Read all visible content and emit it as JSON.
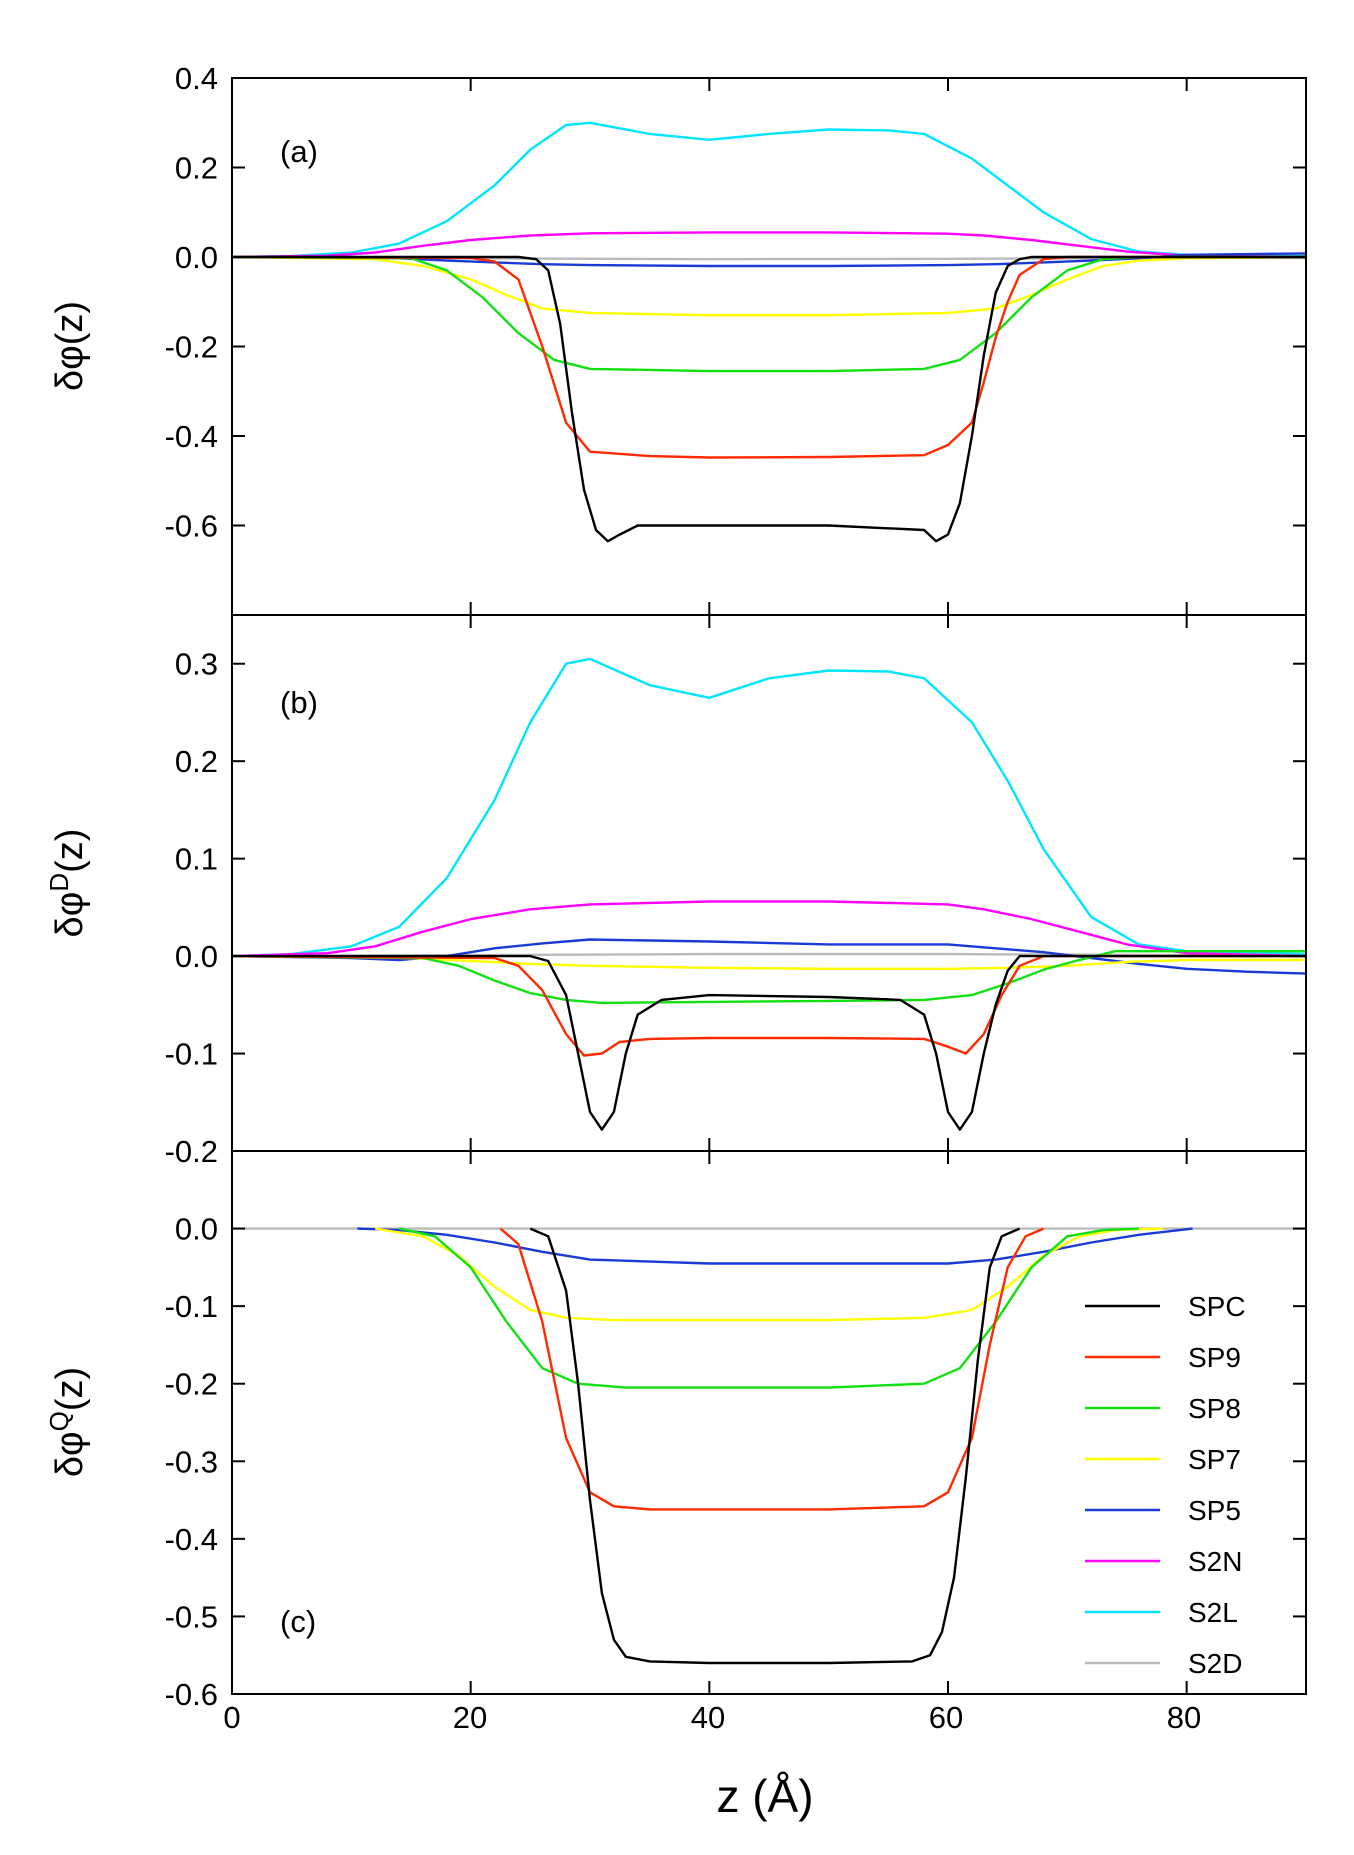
{
  "figure": {
    "xlabel": "z (Å)",
    "xticks": [
      "0",
      "20",
      "40",
      "60",
      "80"
    ]
  },
  "legend": [
    {
      "name": "SPC",
      "color": "#000000"
    },
    {
      "name": "SP9",
      "color": "#ff2a00"
    },
    {
      "name": "SP8",
      "color": "#12e012"
    },
    {
      "name": "SP7",
      "color": "#ffff00"
    },
    {
      "name": "SP5",
      "color": "#1a3ad6"
    },
    {
      "name": "S2N",
      "color": "#ff00ff"
    },
    {
      "name": "S2L",
      "color": "#00e5ff"
    },
    {
      "name": "S2D",
      "color": "#bbbbbb"
    }
  ],
  "chart_data": [
    {
      "type": "line",
      "panel_label": "(a)",
      "ylabel_main": "δφ(z)",
      "ylabel_sup": "",
      "xlim": [
        0,
        90
      ],
      "ylim": [
        -0.8,
        0.4
      ],
      "yticks": [
        0.4,
        0.2,
        0.0,
        -0.2,
        -0.4,
        -0.6
      ],
      "ytick_labels": [
        "0.4",
        "0.2",
        "0.0",
        "-0.2",
        "-0.4",
        "-0.6"
      ],
      "series": [
        {
          "name": "S2D",
          "x": [
            0,
            20,
            40,
            60,
            80,
            90
          ],
          "y": [
            0,
            -0.003,
            -0.005,
            -0.004,
            -0.002,
            -0.002
          ]
        },
        {
          "name": "S2L",
          "x": [
            0,
            5,
            10,
            14,
            18,
            22,
            25,
            28,
            30,
            35,
            40,
            45,
            50,
            55,
            58,
            62,
            65,
            68,
            72,
            76,
            80,
            90
          ],
          "y": [
            0,
            0.002,
            0.01,
            0.03,
            0.08,
            0.16,
            0.24,
            0.295,
            0.3,
            0.275,
            0.262,
            0.275,
            0.285,
            0.283,
            0.275,
            0.22,
            0.16,
            0.1,
            0.04,
            0.012,
            0.005,
            0.002
          ]
        },
        {
          "name": "S2N",
          "x": [
            0,
            8,
            12,
            16,
            20,
            25,
            30,
            40,
            50,
            60,
            63,
            67,
            71,
            75,
            80,
            90
          ],
          "y": [
            0,
            0.003,
            0.01,
            0.025,
            0.038,
            0.048,
            0.053,
            0.055,
            0.055,
            0.052,
            0.048,
            0.038,
            0.025,
            0.012,
            0.003,
            0
          ]
        },
        {
          "name": "SP5",
          "x": [
            0,
            10,
            14,
            18,
            22,
            26,
            30,
            40,
            50,
            60,
            64,
            68,
            72,
            76,
            80,
            90
          ],
          "y": [
            0,
            0,
            -0.003,
            -0.008,
            -0.012,
            -0.016,
            -0.018,
            -0.02,
            -0.02,
            -0.018,
            -0.016,
            -0.012,
            -0.008,
            -0.003,
            0.005,
            0.008
          ]
        },
        {
          "name": "SP7",
          "x": [
            0,
            12,
            16,
            20,
            23,
            26,
            30,
            40,
            50,
            60,
            64,
            67,
            70,
            73,
            76,
            80,
            90
          ],
          "y": [
            0,
            -0.005,
            -0.02,
            -0.05,
            -0.085,
            -0.115,
            -0.125,
            -0.13,
            -0.13,
            -0.125,
            -0.115,
            -0.085,
            -0.05,
            -0.02,
            -0.008,
            -0.003,
            0
          ]
        },
        {
          "name": "SP8",
          "x": [
            0,
            15,
            18,
            21,
            24,
            27,
            30,
            40,
            50,
            58,
            61,
            64,
            67,
            70,
            73,
            76,
            90
          ],
          "y": [
            0,
            -0.003,
            -0.03,
            -0.09,
            -0.17,
            -0.23,
            -0.25,
            -0.255,
            -0.255,
            -0.25,
            -0.23,
            -0.17,
            -0.09,
            -0.03,
            -0.005,
            0,
            0
          ]
        },
        {
          "name": "SP9",
          "x": [
            0,
            20,
            22,
            24,
            26,
            28,
            30,
            35,
            40,
            50,
            58,
            60,
            62,
            63,
            64,
            65,
            66,
            68,
            70,
            90
          ],
          "y": [
            0,
            -0.002,
            -0.01,
            -0.05,
            -0.2,
            -0.37,
            -0.435,
            -0.445,
            -0.448,
            -0.447,
            -0.443,
            -0.42,
            -0.37,
            -0.28,
            -0.18,
            -0.1,
            -0.04,
            -0.005,
            0,
            0
          ]
        },
        {
          "name": "SPC",
          "x": [
            0,
            24,
            25.5,
            26.5,
            27.5,
            28.5,
            29.5,
            30.5,
            31.5,
            32.5,
            34,
            40,
            50,
            58,
            59,
            60,
            61,
            62,
            63,
            64,
            65,
            66,
            67,
            90
          ],
          "y": [
            0,
            0,
            -0.005,
            -0.03,
            -0.15,
            -0.35,
            -0.52,
            -0.61,
            -0.635,
            -0.62,
            -0.6,
            -0.6,
            -0.6,
            -0.61,
            -0.635,
            -0.62,
            -0.55,
            -0.4,
            -0.22,
            -0.08,
            -0.02,
            -0.005,
            0,
            0
          ]
        }
      ]
    },
    {
      "type": "line",
      "panel_label": "(b)",
      "ylabel_main": "δφ",
      "ylabel_sup": "D",
      "ylabel_suffix": "(z)",
      "xlim": [
        0,
        90
      ],
      "ylim": [
        -0.2,
        0.35
      ],
      "yticks": [
        0.3,
        0.2,
        0.1,
        0.0,
        -0.1,
        -0.2
      ],
      "ytick_labels": [
        "0.3",
        "0.2",
        "0.1",
        "0.0",
        "-0.1",
        "-0.2"
      ],
      "series": [
        {
          "name": "S2D",
          "x": [
            0,
            20,
            40,
            60,
            80,
            90
          ],
          "y": [
            0,
            0.001,
            0.002,
            0.002,
            0.001,
            0
          ]
        },
        {
          "name": "S2L",
          "x": [
            0,
            5,
            10,
            14,
            18,
            22,
            25,
            28,
            30,
            35,
            40,
            45,
            50,
            55,
            58,
            62,
            65,
            68,
            72,
            76,
            80,
            90
          ],
          "y": [
            0,
            0.002,
            0.01,
            0.03,
            0.08,
            0.16,
            0.24,
            0.3,
            0.305,
            0.278,
            0.265,
            0.285,
            0.293,
            0.292,
            0.285,
            0.24,
            0.18,
            0.11,
            0.04,
            0.012,
            0.005,
            0.002
          ]
        },
        {
          "name": "S2N",
          "x": [
            0,
            8,
            12,
            16,
            20,
            25,
            30,
            40,
            50,
            60,
            63,
            67,
            71,
            75,
            80,
            90
          ],
          "y": [
            0,
            0.003,
            0.01,
            0.025,
            0.038,
            0.048,
            0.053,
            0.056,
            0.056,
            0.053,
            0.048,
            0.038,
            0.025,
            0.012,
            0.003,
            0
          ]
        },
        {
          "name": "SP5",
          "x": [
            0,
            10,
            14,
            18,
            22,
            26,
            30,
            40,
            50,
            60,
            64,
            68,
            72,
            76,
            80,
            85,
            90
          ],
          "y": [
            0,
            -0.002,
            -0.004,
            0,
            0.008,
            0.013,
            0.017,
            0.015,
            0.012,
            0.012,
            0.008,
            0.004,
            -0.002,
            -0.008,
            -0.013,
            -0.016,
            -0.018
          ]
        },
        {
          "name": "SP7",
          "x": [
            0,
            15,
            20,
            25,
            30,
            40,
            50,
            60,
            65,
            70,
            75,
            80,
            90
          ],
          "y": [
            0,
            -0.002,
            -0.005,
            -0.008,
            -0.01,
            -0.012,
            -0.013,
            -0.013,
            -0.012,
            -0.01,
            -0.006,
            -0.004,
            -0.004
          ]
        },
        {
          "name": "SP8",
          "x": [
            0,
            16,
            19,
            22,
            25,
            28,
            31,
            40,
            50,
            58,
            62,
            65,
            68,
            71,
            74,
            90
          ],
          "y": [
            0,
            -0.002,
            -0.01,
            -0.025,
            -0.038,
            -0.045,
            -0.048,
            -0.047,
            -0.046,
            -0.045,
            -0.04,
            -0.028,
            -0.014,
            -0.004,
            0.005,
            0.005
          ]
        },
        {
          "name": "SP9",
          "x": [
            0,
            22,
            24,
            26,
            28,
            29.5,
            31,
            32.5,
            35,
            40,
            50,
            58,
            60,
            61.5,
            63,
            64.5,
            66,
            68,
            90
          ],
          "y": [
            0,
            -0.002,
            -0.01,
            -0.035,
            -0.08,
            -0.102,
            -0.1,
            -0.088,
            -0.085,
            -0.084,
            -0.084,
            -0.085,
            -0.093,
            -0.1,
            -0.08,
            -0.04,
            -0.01,
            0,
            0
          ]
        },
        {
          "name": "SPC",
          "x": [
            0,
            25,
            26.5,
            28,
            29,
            30,
            31,
            32,
            33,
            34,
            36,
            40,
            50,
            56,
            58,
            59,
            60,
            61,
            62,
            63,
            64,
            65,
            66,
            90
          ],
          "y": [
            0,
            0,
            -0.005,
            -0.04,
            -0.1,
            -0.16,
            -0.178,
            -0.16,
            -0.1,
            -0.06,
            -0.045,
            -0.04,
            -0.042,
            -0.045,
            -0.06,
            -0.1,
            -0.16,
            -0.178,
            -0.16,
            -0.1,
            -0.05,
            -0.015,
            0,
            0
          ]
        }
      ]
    },
    {
      "type": "line",
      "panel_label": "(c)",
      "ylabel_main": "δφ",
      "ylabel_sup": "Q",
      "ylabel_suffix": "(z)",
      "xlim": [
        0,
        90
      ],
      "ylim": [
        -0.6,
        0.1
      ],
      "yticks": [
        0.0,
        -0.1,
        -0.2,
        -0.3,
        -0.4,
        -0.5,
        -0.6
      ],
      "ytick_labels": [
        "0.0",
        "-0.1",
        "-0.2",
        "-0.3",
        "-0.4",
        "-0.5",
        "-0.6"
      ],
      "series": [
        {
          "name": "S2D",
          "x": [
            0,
            90
          ],
          "y": [
            0,
            0
          ]
        },
        {
          "name": "SP5",
          "x": [
            10.5,
            14,
            18,
            22,
            26,
            30,
            40,
            50,
            60,
            64,
            68,
            72,
            76,
            80.5
          ],
          "y": [
            0,
            -0.002,
            -0.008,
            -0.018,
            -0.03,
            -0.04,
            -0.045,
            -0.045,
            -0.045,
            -0.04,
            -0.03,
            -0.018,
            -0.008,
            0
          ]
        },
        {
          "name": "SP7",
          "x": [
            12,
            16,
            19,
            22,
            25,
            28,
            32,
            40,
            50,
            58,
            62,
            65,
            68,
            71,
            74,
            78
          ],
          "y": [
            0,
            -0.01,
            -0.035,
            -0.075,
            -0.105,
            -0.115,
            -0.118,
            -0.118,
            -0.118,
            -0.115,
            -0.105,
            -0.075,
            -0.035,
            -0.01,
            -0.002,
            0
          ]
        },
        {
          "name": "SP8",
          "x": [
            14,
            17,
            20,
            23,
            26,
            29,
            33,
            40,
            50,
            58,
            61,
            64,
            67,
            70,
            73,
            76
          ],
          "y": [
            0,
            -0.01,
            -0.05,
            -0.12,
            -0.18,
            -0.2,
            -0.205,
            -0.205,
            -0.205,
            -0.2,
            -0.18,
            -0.12,
            -0.05,
            -0.01,
            -0.002,
            0
          ]
        },
        {
          "name": "SP9",
          "x": [
            22.5,
            24,
            26,
            28,
            30,
            32,
            35,
            40,
            50,
            58,
            60,
            62,
            63.5,
            65,
            66.5,
            68
          ],
          "y": [
            0,
            -0.02,
            -0.12,
            -0.27,
            -0.34,
            -0.358,
            -0.362,
            -0.362,
            -0.362,
            -0.358,
            -0.34,
            -0.27,
            -0.15,
            -0.05,
            -0.01,
            0
          ]
        },
        {
          "name": "SPC",
          "x": [
            25,
            26.5,
            28,
            29,
            30,
            31,
            32,
            33,
            35,
            40,
            50,
            57,
            58.5,
            59.5,
            60.5,
            61.5,
            62.5,
            63.5,
            64.5,
            66
          ],
          "y": [
            0,
            -0.01,
            -0.08,
            -0.2,
            -0.35,
            -0.47,
            -0.53,
            -0.552,
            -0.558,
            -0.56,
            -0.56,
            -0.558,
            -0.55,
            -0.52,
            -0.45,
            -0.32,
            -0.17,
            -0.05,
            -0.01,
            0
          ]
        }
      ]
    }
  ]
}
